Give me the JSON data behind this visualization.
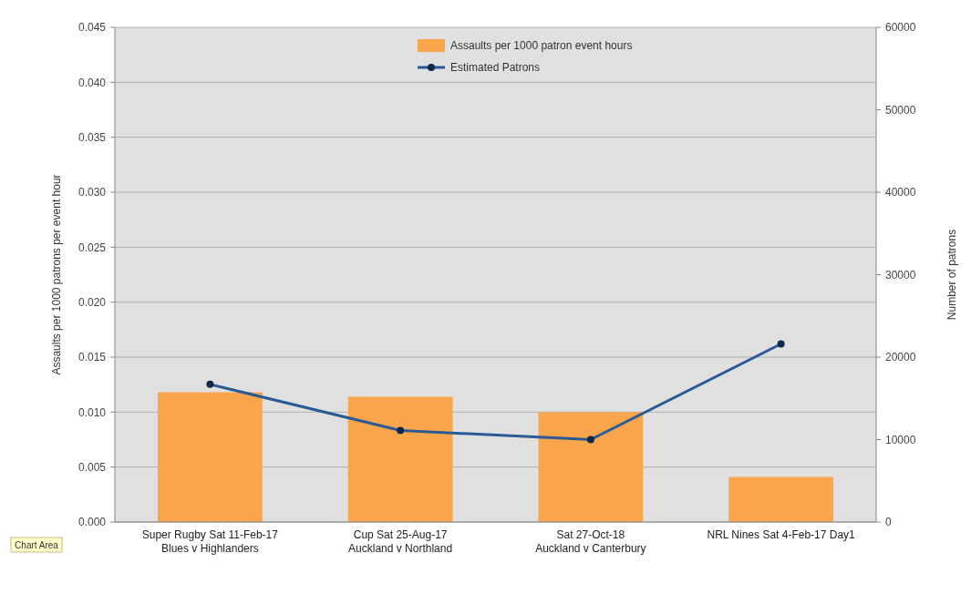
{
  "chart_data": {
    "type": "bar",
    "categories": [
      "Super Rugby Sat 11-Feb-17\nBlues v Highlanders",
      "Cup Sat 25-Aug-17\nAuckland v Northland",
      "Sat 27-Oct-18\nAuckland v Canterbury",
      "NRL Nines Sat 4-Feb-17 Day1"
    ],
    "series": [
      {
        "name": "Assaults per 1000 patron event hours",
        "color": "#f9a54b",
        "values": [
          0.0118,
          0.0114,
          0.01,
          0.0041
        ]
      },
      {
        "name": "Estimated Patrons",
        "type": "line",
        "axis": "y2",
        "color": "#2a5a96",
        "values": [
          16700,
          11100,
          10000,
          21600
        ]
      }
    ],
    "ylabel": "Assaults per 1000 patrons per event hour",
    "y2label": "Number of patrons",
    "ylim": [
      0,
      0.045
    ],
    "yticks": [
      {
        "value": 0,
        "label": "0.000"
      },
      {
        "value": 0.005,
        "label": "0.005"
      },
      {
        "value": 0.01,
        "label": "0.010"
      },
      {
        "value": 0.015,
        "label": "0.015"
      },
      {
        "value": 0.02,
        "label": "0.020"
      },
      {
        "value": 0.025,
        "label": "0.025"
      },
      {
        "value": 0.03,
        "label": "0.030"
      },
      {
        "value": 0.035,
        "label": "0.035"
      },
      {
        "value": 0.04,
        "label": "0.040"
      },
      {
        "value": 0.045,
        "label": "0.045"
      }
    ],
    "y2lim": [
      0,
      60000
    ],
    "y2ticks": [
      0,
      10000,
      20000,
      30000,
      40000,
      50000,
      60000
    ],
    "grid": "y",
    "legend": "top",
    "marker": "circle",
    "annotations": [
      "Chart Area"
    ]
  }
}
